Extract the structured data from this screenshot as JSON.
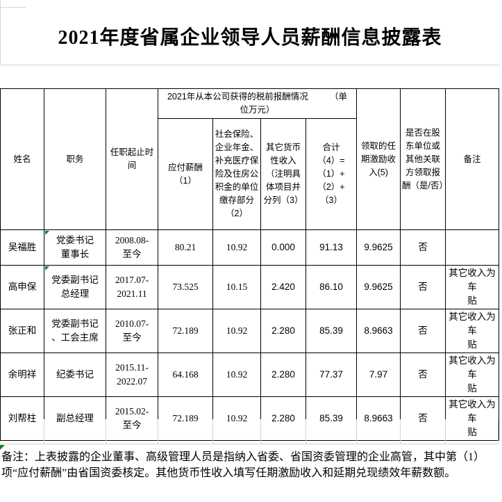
{
  "title": "2021年度省属企业领导人员薪酬信息披露表",
  "table": {
    "header": {
      "name": "姓名",
      "position": "职务",
      "tenure": "任职起止时间",
      "compensation_group": "2021年从本公司获得的税前报酬情况　　　（单\n位万元）",
      "payable": "应付薪酬\n（1）",
      "insurance": "社会保险、企业年金、补充医疗保险及住房公积金的单位缴存部分（2）",
      "other_income": "其它货币性收入（注明具体项目并分列（3）",
      "total": "合计\n（4）=\n（1）+\n（2）+\n（3）",
      "term_incentive": "领取的任期激励收入(5)",
      "shareholder": "是否在股东单位或其他关联方领取报酬（是/否）",
      "remark": "备注"
    },
    "rows": [
      {
        "name": "吴福胜",
        "position": "党委书记\n董事长",
        "tenure": "2008.08-\n至今",
        "payable": "80.21",
        "insurance": "10.92",
        "other": "0.000",
        "total": "91.13",
        "incentive": "9.9625",
        "shareholder": "否",
        "remark": "",
        "marker": true
      },
      {
        "name": "高申保",
        "position": "党委副书记\n总经理",
        "tenure": "2017.07-\n2021.11",
        "payable": "73.525",
        "insurance": "10.15",
        "other": "2.420",
        "total": "86.10",
        "incentive": "9.9625",
        "shareholder": "否",
        "remark": "其它收入为车\n贴",
        "marker": true
      },
      {
        "name": "张正和",
        "position": "党委副书记\n、工会主席",
        "tenure": "2010.07-\n至今",
        "payable": "72.189",
        "insurance": "10.92",
        "other": "2.280",
        "total": "85.39",
        "incentive": "8.9663",
        "shareholder": "否",
        "remark": "其它收入为车\n贴",
        "marker": false
      },
      {
        "name": "余明祥",
        "position": "纪委书记",
        "tenure": "2015.11-\n2022.07",
        "payable": "64.168",
        "insurance": "10.92",
        "other": "2.280",
        "total": "77.37",
        "incentive": "7.97",
        "shareholder": "否",
        "remark": "其它收入为车\n贴",
        "marker": false
      },
      {
        "name": "刘帮柱",
        "position": "副总经理",
        "tenure": "2015.02-\n至今",
        "payable": "72.189",
        "insurance": "10.92",
        "other": "2.280",
        "total": "85.39",
        "incentive": "8.9663",
        "shareholder": "否",
        "remark": "其它收入为车\n贴",
        "marker": false
      }
    ]
  },
  "note": {
    "text": "备注：上表披露的企业董事、高级管理人员是指纳入省委、省国资委管理的企业高管，其中第（1）项“应付薪酬”由省国资委核定。其他货币性收入填写任期激励收入和延期兑现绩效年薪数额。"
  }
}
